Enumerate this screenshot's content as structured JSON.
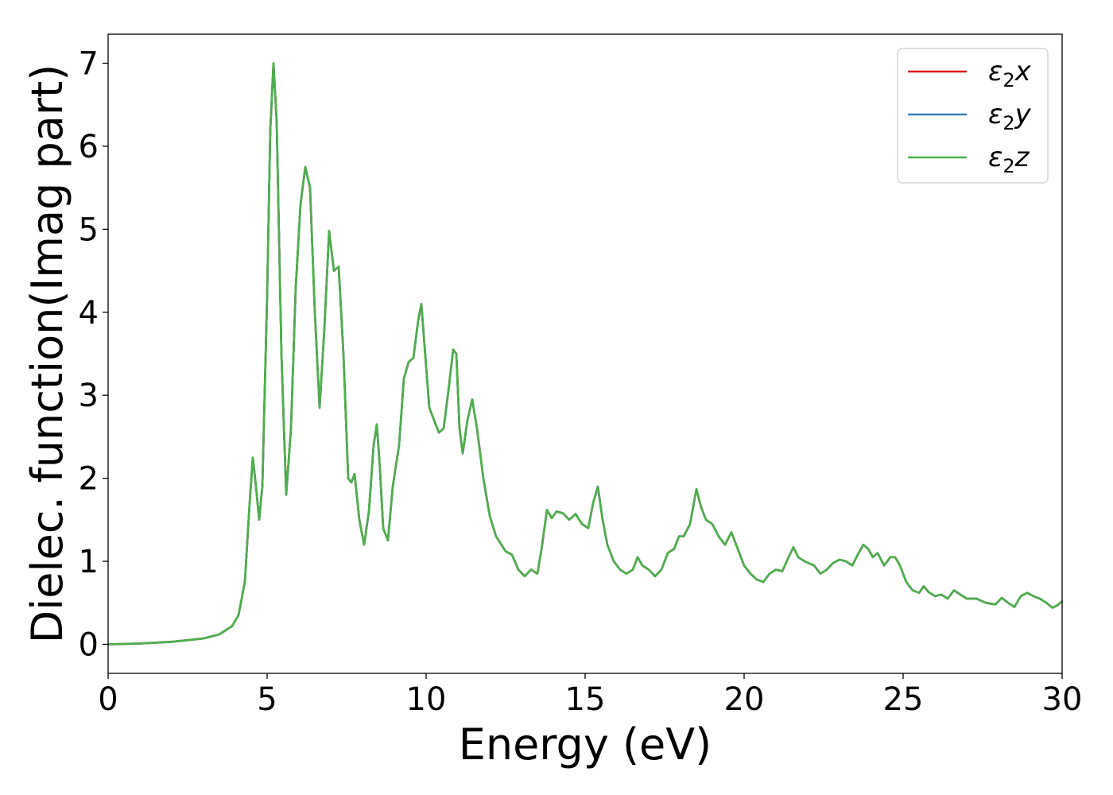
{
  "chart_data": {
    "type": "line",
    "title": "",
    "xlabel": "Energy (eV)",
    "ylabel": "Dielec. function(Imag part)",
    "xlim": [
      0,
      30
    ],
    "ylim": [
      -0.35,
      7.35
    ],
    "xticks": [
      "0",
      "5",
      "10",
      "15",
      "20",
      "25",
      "30"
    ],
    "yticks": [
      "0",
      "1",
      "2",
      "3",
      "4",
      "5",
      "6",
      "7"
    ],
    "grid": false,
    "legend_position": "top-right",
    "series": [
      {
        "name": "ε₂x",
        "label_main": "ε",
        "label_sub": "2",
        "label_suffix": "x",
        "color": "#e41a1c",
        "points": [
          [
            0,
            0.0
          ],
          [
            1,
            0.01
          ],
          [
            2,
            0.03
          ],
          [
            3,
            0.07
          ],
          [
            3.5,
            0.12
          ],
          [
            3.9,
            0.22
          ],
          [
            4.1,
            0.35
          ],
          [
            4.3,
            0.75
          ],
          [
            4.45,
            1.7
          ],
          [
            4.55,
            2.25
          ],
          [
            4.65,
            1.9
          ],
          [
            4.75,
            1.5
          ],
          [
            4.85,
            1.9
          ],
          [
            5.0,
            4.2
          ],
          [
            5.1,
            6.2
          ],
          [
            5.2,
            7.0
          ],
          [
            5.3,
            6.3
          ],
          [
            5.45,
            3.5
          ],
          [
            5.6,
            1.8
          ],
          [
            5.75,
            2.6
          ],
          [
            5.9,
            4.3
          ],
          [
            6.05,
            5.3
          ],
          [
            6.2,
            5.75
          ],
          [
            6.35,
            5.5
          ],
          [
            6.5,
            4.0
          ],
          [
            6.65,
            2.85
          ],
          [
            6.8,
            3.8
          ],
          [
            6.95,
            4.98
          ],
          [
            7.1,
            4.5
          ],
          [
            7.25,
            4.55
          ],
          [
            7.4,
            3.5
          ],
          [
            7.55,
            2.0
          ],
          [
            7.65,
            1.95
          ],
          [
            7.75,
            2.05
          ],
          [
            7.9,
            1.5
          ],
          [
            8.05,
            1.2
          ],
          [
            8.2,
            1.6
          ],
          [
            8.35,
            2.4
          ],
          [
            8.45,
            2.65
          ],
          [
            8.55,
            2.1
          ],
          [
            8.65,
            1.4
          ],
          [
            8.8,
            1.25
          ],
          [
            8.95,
            1.9
          ],
          [
            9.15,
            2.4
          ],
          [
            9.3,
            3.2
          ],
          [
            9.45,
            3.4
          ],
          [
            9.6,
            3.45
          ],
          [
            9.75,
            3.9
          ],
          [
            9.85,
            4.1
          ],
          [
            9.95,
            3.6
          ],
          [
            10.1,
            2.85
          ],
          [
            10.25,
            2.7
          ],
          [
            10.4,
            2.55
          ],
          [
            10.55,
            2.6
          ],
          [
            10.7,
            3.05
          ],
          [
            10.85,
            3.55
          ],
          [
            10.95,
            3.5
          ],
          [
            11.05,
            2.6
          ],
          [
            11.15,
            2.3
          ],
          [
            11.3,
            2.7
          ],
          [
            11.45,
            2.95
          ],
          [
            11.6,
            2.6
          ],
          [
            11.8,
            2.0
          ],
          [
            12.0,
            1.55
          ],
          [
            12.2,
            1.3
          ],
          [
            12.5,
            1.12
          ],
          [
            12.7,
            1.08
          ],
          [
            12.9,
            0.9
          ],
          [
            13.1,
            0.82
          ],
          [
            13.3,
            0.9
          ],
          [
            13.5,
            0.85
          ],
          [
            13.65,
            1.2
          ],
          [
            13.8,
            1.62
          ],
          [
            13.95,
            1.52
          ],
          [
            14.1,
            1.6
          ],
          [
            14.3,
            1.58
          ],
          [
            14.5,
            1.5
          ],
          [
            14.7,
            1.57
          ],
          [
            14.9,
            1.45
          ],
          [
            15.1,
            1.4
          ],
          [
            15.25,
            1.7
          ],
          [
            15.4,
            1.9
          ],
          [
            15.55,
            1.5
          ],
          [
            15.7,
            1.2
          ],
          [
            15.9,
            1.0
          ],
          [
            16.1,
            0.9
          ],
          [
            16.3,
            0.85
          ],
          [
            16.5,
            0.9
          ],
          [
            16.65,
            1.05
          ],
          [
            16.8,
            0.95
          ],
          [
            17.0,
            0.9
          ],
          [
            17.2,
            0.82
          ],
          [
            17.4,
            0.9
          ],
          [
            17.6,
            1.1
          ],
          [
            17.8,
            1.15
          ],
          [
            17.95,
            1.3
          ],
          [
            18.1,
            1.3
          ],
          [
            18.3,
            1.45
          ],
          [
            18.5,
            1.87
          ],
          [
            18.65,
            1.65
          ],
          [
            18.8,
            1.5
          ],
          [
            19.0,
            1.45
          ],
          [
            19.2,
            1.3
          ],
          [
            19.4,
            1.2
          ],
          [
            19.6,
            1.35
          ],
          [
            19.8,
            1.15
          ],
          [
            20.0,
            0.95
          ],
          [
            20.2,
            0.85
          ],
          [
            20.4,
            0.78
          ],
          [
            20.6,
            0.75
          ],
          [
            20.8,
            0.85
          ],
          [
            21.0,
            0.9
          ],
          [
            21.2,
            0.88
          ],
          [
            21.4,
            1.05
          ],
          [
            21.55,
            1.17
          ],
          [
            21.7,
            1.05
          ],
          [
            21.9,
            1.0
          ],
          [
            22.2,
            0.95
          ],
          [
            22.4,
            0.85
          ],
          [
            22.6,
            0.9
          ],
          [
            22.8,
            0.98
          ],
          [
            23.0,
            1.02
          ],
          [
            23.2,
            1.0
          ],
          [
            23.4,
            0.95
          ],
          [
            23.6,
            1.1
          ],
          [
            23.75,
            1.2
          ],
          [
            23.9,
            1.15
          ],
          [
            24.05,
            1.05
          ],
          [
            24.2,
            1.1
          ],
          [
            24.4,
            0.95
          ],
          [
            24.6,
            1.05
          ],
          [
            24.75,
            1.05
          ],
          [
            24.9,
            0.95
          ],
          [
            25.1,
            0.75
          ],
          [
            25.3,
            0.65
          ],
          [
            25.5,
            0.62
          ],
          [
            25.65,
            0.7
          ],
          [
            25.8,
            0.63
          ],
          [
            26.0,
            0.58
          ],
          [
            26.2,
            0.6
          ],
          [
            26.4,
            0.55
          ],
          [
            26.6,
            0.65
          ],
          [
            26.8,
            0.6
          ],
          [
            27.0,
            0.55
          ],
          [
            27.3,
            0.55
          ],
          [
            27.6,
            0.5
          ],
          [
            27.9,
            0.48
          ],
          [
            28.1,
            0.56
          ],
          [
            28.3,
            0.5
          ],
          [
            28.5,
            0.45
          ],
          [
            28.7,
            0.58
          ],
          [
            28.9,
            0.62
          ],
          [
            29.1,
            0.58
          ],
          [
            29.3,
            0.55
          ],
          [
            29.5,
            0.5
          ],
          [
            29.7,
            0.44
          ],
          [
            29.85,
            0.47
          ],
          [
            30.0,
            0.52
          ]
        ]
      },
      {
        "name": "ε₂y",
        "label_main": "ε",
        "label_sub": "2",
        "label_suffix": "y",
        "color": "#377eb8",
        "same_as": 0
      },
      {
        "name": "ε₂z",
        "label_main": "ε",
        "label_sub": "2",
        "label_suffix": "z",
        "color": "#4daf4a",
        "same_as": 0
      }
    ]
  }
}
